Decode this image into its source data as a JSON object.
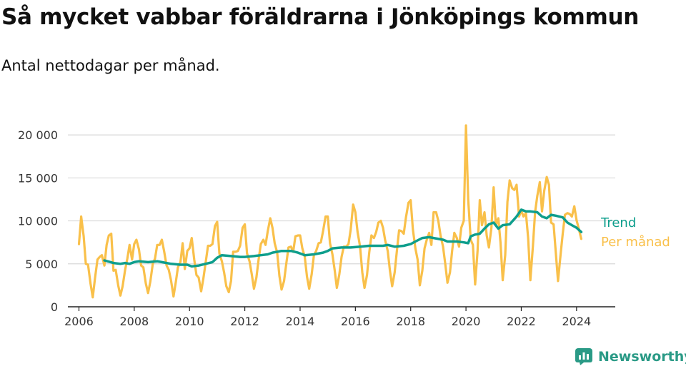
{
  "header": {
    "title": "Så mycket vabbar föräldrarna i Jönköpings kommun",
    "subtitle": "Antal nettodagar per månad."
  },
  "brand": {
    "name": "Newsworthy"
  },
  "colors": {
    "trend": "#0e9e8c",
    "monthly": "#f9c04a",
    "grid": "#d9d9d9",
    "brand": "#2a9a86"
  },
  "chart_data": {
    "type": "line",
    "ylim": [
      0,
      22000
    ],
    "xlim": [
      2005.6,
      2025.4
    ],
    "y_ticks": [
      0,
      5000,
      10000,
      15000,
      20000
    ],
    "y_tick_labels": [
      "0",
      "5 000",
      "10 000",
      "15 000",
      "20 000"
    ],
    "x_ticks": [
      2006,
      2008,
      2010,
      2012,
      2014,
      2016,
      2018,
      2020,
      2022,
      2024
    ],
    "x_tick_labels": [
      "2006",
      "2008",
      "2010",
      "2012",
      "2014",
      "2016",
      "2018",
      "2020",
      "2022",
      "2024"
    ],
    "grid": true,
    "legend": "right, next to line ends",
    "series": [
      {
        "name": "Per månad",
        "key": "monthly",
        "points": [
          [
            2006.0,
            7300
          ],
          [
            2006.08,
            10500
          ],
          [
            2006.17,
            8200
          ],
          [
            2006.25,
            5000
          ],
          [
            2006.33,
            4900
          ],
          [
            2006.42,
            2700
          ],
          [
            2006.5,
            1100
          ],
          [
            2006.58,
            3300
          ],
          [
            2006.67,
            5500
          ],
          [
            2006.75,
            5800
          ],
          [
            2006.83,
            6000
          ],
          [
            2006.92,
            4800
          ],
          [
            2007.0,
            7200
          ],
          [
            2007.08,
            8300
          ],
          [
            2007.17,
            8500
          ],
          [
            2007.25,
            4200
          ],
          [
            2007.33,
            4300
          ],
          [
            2007.42,
            2500
          ],
          [
            2007.5,
            1300
          ],
          [
            2007.58,
            2400
          ],
          [
            2007.67,
            4300
          ],
          [
            2007.75,
            5600
          ],
          [
            2007.83,
            7200
          ],
          [
            2007.92,
            5500
          ],
          [
            2008.0,
            7300
          ],
          [
            2008.08,
            7800
          ],
          [
            2008.17,
            6700
          ],
          [
            2008.25,
            4800
          ],
          [
            2008.33,
            4600
          ],
          [
            2008.42,
            2700
          ],
          [
            2008.5,
            1600
          ],
          [
            2008.58,
            2900
          ],
          [
            2008.67,
            5000
          ],
          [
            2008.75,
            5600
          ],
          [
            2008.83,
            7200
          ],
          [
            2008.92,
            7200
          ],
          [
            2009.0,
            7800
          ],
          [
            2009.08,
            6500
          ],
          [
            2009.17,
            4800
          ],
          [
            2009.25,
            4300
          ],
          [
            2009.33,
            3100
          ],
          [
            2009.42,
            1200
          ],
          [
            2009.5,
            2800
          ],
          [
            2009.58,
            4600
          ],
          [
            2009.67,
            5200
          ],
          [
            2009.75,
            7400
          ],
          [
            2009.83,
            4400
          ],
          [
            2009.92,
            6500
          ],
          [
            2010.0,
            6800
          ],
          [
            2010.08,
            8000
          ],
          [
            2010.17,
            5500
          ],
          [
            2010.25,
            3700
          ],
          [
            2010.33,
            3400
          ],
          [
            2010.42,
            1800
          ],
          [
            2010.5,
            3300
          ],
          [
            2010.58,
            5100
          ],
          [
            2010.67,
            7100
          ],
          [
            2010.75,
            7100
          ],
          [
            2010.83,
            7300
          ],
          [
            2010.92,
            9400
          ],
          [
            2011.0,
            9900
          ],
          [
            2011.08,
            6200
          ],
          [
            2011.17,
            5300
          ],
          [
            2011.25,
            4000
          ],
          [
            2011.33,
            2400
          ],
          [
            2011.42,
            1700
          ],
          [
            2011.5,
            3000
          ],
          [
            2011.58,
            6400
          ],
          [
            2011.67,
            6400
          ],
          [
            2011.75,
            6500
          ],
          [
            2011.83,
            7100
          ],
          [
            2011.92,
            9200
          ],
          [
            2012.0,
            9600
          ],
          [
            2012.08,
            6200
          ],
          [
            2012.17,
            5300
          ],
          [
            2012.25,
            3800
          ],
          [
            2012.33,
            2100
          ],
          [
            2012.42,
            3400
          ],
          [
            2012.5,
            5500
          ],
          [
            2012.58,
            7300
          ],
          [
            2012.67,
            7800
          ],
          [
            2012.75,
            7200
          ],
          [
            2012.83,
            8800
          ],
          [
            2012.92,
            10300
          ],
          [
            2013.0,
            9200
          ],
          [
            2013.08,
            7400
          ],
          [
            2013.17,
            6300
          ],
          [
            2013.25,
            3600
          ],
          [
            2013.33,
            2000
          ],
          [
            2013.42,
            3000
          ],
          [
            2013.5,
            5000
          ],
          [
            2013.58,
            6900
          ],
          [
            2013.67,
            7000
          ],
          [
            2013.75,
            6400
          ],
          [
            2013.83,
            8200
          ],
          [
            2013.92,
            8300
          ],
          [
            2014.0,
            8300
          ],
          [
            2014.08,
            6800
          ],
          [
            2014.17,
            5800
          ],
          [
            2014.25,
            3500
          ],
          [
            2014.33,
            2100
          ],
          [
            2014.42,
            3800
          ],
          [
            2014.5,
            6000
          ],
          [
            2014.58,
            6500
          ],
          [
            2014.67,
            7400
          ],
          [
            2014.75,
            7500
          ],
          [
            2014.83,
            8800
          ],
          [
            2014.92,
            10500
          ],
          [
            2015.0,
            10500
          ],
          [
            2015.08,
            7400
          ],
          [
            2015.17,
            6100
          ],
          [
            2015.25,
            4300
          ],
          [
            2015.33,
            2200
          ],
          [
            2015.42,
            3800
          ],
          [
            2015.5,
            5800
          ],
          [
            2015.58,
            7000
          ],
          [
            2015.67,
            7000
          ],
          [
            2015.75,
            7300
          ],
          [
            2015.83,
            9000
          ],
          [
            2015.92,
            11900
          ],
          [
            2016.0,
            11000
          ],
          [
            2016.08,
            8700
          ],
          [
            2016.17,
            7000
          ],
          [
            2016.25,
            4000
          ],
          [
            2016.33,
            2200
          ],
          [
            2016.42,
            3700
          ],
          [
            2016.5,
            6300
          ],
          [
            2016.58,
            8300
          ],
          [
            2016.67,
            8000
          ],
          [
            2016.75,
            8700
          ],
          [
            2016.83,
            9800
          ],
          [
            2016.92,
            10000
          ],
          [
            2017.0,
            9200
          ],
          [
            2017.08,
            7700
          ],
          [
            2017.17,
            6500
          ],
          [
            2017.25,
            4200
          ],
          [
            2017.33,
            2400
          ],
          [
            2017.42,
            4000
          ],
          [
            2017.5,
            6500
          ],
          [
            2017.58,
            8900
          ],
          [
            2017.67,
            8800
          ],
          [
            2017.75,
            8500
          ],
          [
            2017.83,
            10400
          ],
          [
            2017.92,
            12100
          ],
          [
            2018.0,
            12400
          ],
          [
            2018.08,
            9000
          ],
          [
            2018.17,
            6800
          ],
          [
            2018.25,
            5500
          ],
          [
            2018.33,
            2500
          ],
          [
            2018.42,
            4200
          ],
          [
            2018.5,
            6800
          ],
          [
            2018.58,
            7800
          ],
          [
            2018.67,
            8600
          ],
          [
            2018.75,
            7200
          ],
          [
            2018.83,
            11000
          ],
          [
            2018.92,
            11000
          ],
          [
            2019.0,
            10000
          ],
          [
            2019.08,
            8300
          ],
          [
            2019.17,
            7000
          ],
          [
            2019.25,
            5000
          ],
          [
            2019.33,
            2800
          ],
          [
            2019.42,
            4000
          ],
          [
            2019.5,
            6500
          ],
          [
            2019.58,
            8600
          ],
          [
            2019.67,
            8000
          ],
          [
            2019.75,
            7000
          ],
          [
            2019.83,
            9200
          ],
          [
            2019.92,
            10000
          ],
          [
            2020.0,
            21100
          ],
          [
            2020.08,
            12500
          ],
          [
            2020.17,
            7800
          ],
          [
            2020.25,
            7200
          ],
          [
            2020.33,
            2600
          ],
          [
            2020.42,
            6500
          ],
          [
            2020.5,
            12400
          ],
          [
            2020.58,
            9500
          ],
          [
            2020.67,
            11000
          ],
          [
            2020.75,
            8300
          ],
          [
            2020.83,
            6900
          ],
          [
            2020.92,
            9200
          ],
          [
            2021.0,
            13900
          ],
          [
            2021.08,
            9500
          ],
          [
            2021.17,
            10300
          ],
          [
            2021.25,
            7500
          ],
          [
            2021.33,
            3100
          ],
          [
            2021.42,
            6000
          ],
          [
            2021.5,
            12200
          ],
          [
            2021.58,
            14700
          ],
          [
            2021.67,
            13800
          ],
          [
            2021.75,
            13600
          ],
          [
            2021.83,
            14200
          ],
          [
            2021.92,
            10500
          ],
          [
            2022.0,
            11200
          ],
          [
            2022.08,
            10500
          ],
          [
            2022.17,
            10900
          ],
          [
            2022.25,
            8000
          ],
          [
            2022.33,
            3100
          ],
          [
            2022.42,
            7000
          ],
          [
            2022.5,
            11000
          ],
          [
            2022.58,
            12900
          ],
          [
            2022.67,
            14500
          ],
          [
            2022.75,
            11100
          ],
          [
            2022.83,
            13500
          ],
          [
            2022.92,
            15100
          ],
          [
            2023.0,
            14200
          ],
          [
            2023.08,
            9800
          ],
          [
            2023.17,
            9600
          ],
          [
            2023.25,
            6300
          ],
          [
            2023.33,
            3000
          ],
          [
            2023.42,
            6000
          ],
          [
            2023.5,
            8500
          ],
          [
            2023.58,
            10700
          ],
          [
            2023.67,
            10900
          ],
          [
            2023.75,
            10800
          ],
          [
            2023.83,
            10500
          ],
          [
            2023.92,
            11700
          ],
          [
            2024.0,
            10100
          ],
          [
            2024.08,
            9100
          ],
          [
            2024.17,
            7900
          ]
        ]
      },
      {
        "name": "Trend",
        "key": "trend",
        "points": [
          [
            2006.92,
            5400
          ],
          [
            2007.25,
            5100
          ],
          [
            2007.5,
            5000
          ],
          [
            2007.67,
            5100
          ],
          [
            2007.83,
            5000
          ],
          [
            2008.0,
            5200
          ],
          [
            2008.17,
            5300
          ],
          [
            2008.5,
            5200
          ],
          [
            2008.83,
            5300
          ],
          [
            2009.0,
            5200
          ],
          [
            2009.33,
            5000
          ],
          [
            2009.67,
            4900
          ],
          [
            2009.92,
            4900
          ],
          [
            2010.08,
            4700
          ],
          [
            2010.33,
            4800
          ],
          [
            2010.58,
            5000
          ],
          [
            2010.83,
            5200
          ],
          [
            2011.0,
            5700
          ],
          [
            2011.17,
            6000
          ],
          [
            2011.5,
            5900
          ],
          [
            2011.83,
            5800
          ],
          [
            2012.0,
            5800
          ],
          [
            2012.33,
            5900
          ],
          [
            2012.58,
            6000
          ],
          [
            2012.83,
            6100
          ],
          [
            2013.0,
            6300
          ],
          [
            2013.17,
            6400
          ],
          [
            2013.33,
            6500
          ],
          [
            2013.67,
            6500
          ],
          [
            2013.92,
            6300
          ],
          [
            2014.17,
            6000
          ],
          [
            2014.5,
            6100
          ],
          [
            2014.83,
            6300
          ],
          [
            2015.0,
            6500
          ],
          [
            2015.17,
            6800
          ],
          [
            2015.5,
            6900
          ],
          [
            2015.83,
            6900
          ],
          [
            2016.17,
            7000
          ],
          [
            2016.5,
            7100
          ],
          [
            2016.83,
            7100
          ],
          [
            2017.0,
            7100
          ],
          [
            2017.17,
            7200
          ],
          [
            2017.42,
            7000
          ],
          [
            2017.75,
            7100
          ],
          [
            2018.0,
            7300
          ],
          [
            2018.17,
            7600
          ],
          [
            2018.42,
            8000
          ],
          [
            2018.67,
            8100
          ],
          [
            2018.83,
            8000
          ],
          [
            2019.17,
            7800
          ],
          [
            2019.33,
            7600
          ],
          [
            2019.67,
            7600
          ],
          [
            2019.92,
            7500
          ],
          [
            2020.08,
            7400
          ],
          [
            2020.17,
            8200
          ],
          [
            2020.33,
            8400
          ],
          [
            2020.5,
            8500
          ],
          [
            2020.67,
            9100
          ],
          [
            2020.83,
            9600
          ],
          [
            2021.0,
            9800
          ],
          [
            2021.17,
            9100
          ],
          [
            2021.33,
            9500
          ],
          [
            2021.58,
            9600
          ],
          [
            2021.83,
            10500
          ],
          [
            2022.0,
            11300
          ],
          [
            2022.17,
            11100
          ],
          [
            2022.33,
            11100
          ],
          [
            2022.58,
            11000
          ],
          [
            2022.75,
            10500
          ],
          [
            2022.92,
            10300
          ],
          [
            2023.08,
            10700
          ],
          [
            2023.25,
            10600
          ],
          [
            2023.5,
            10400
          ],
          [
            2023.67,
            9800
          ],
          [
            2023.83,
            9500
          ],
          [
            2024.0,
            9200
          ],
          [
            2024.17,
            8700
          ]
        ]
      }
    ]
  }
}
